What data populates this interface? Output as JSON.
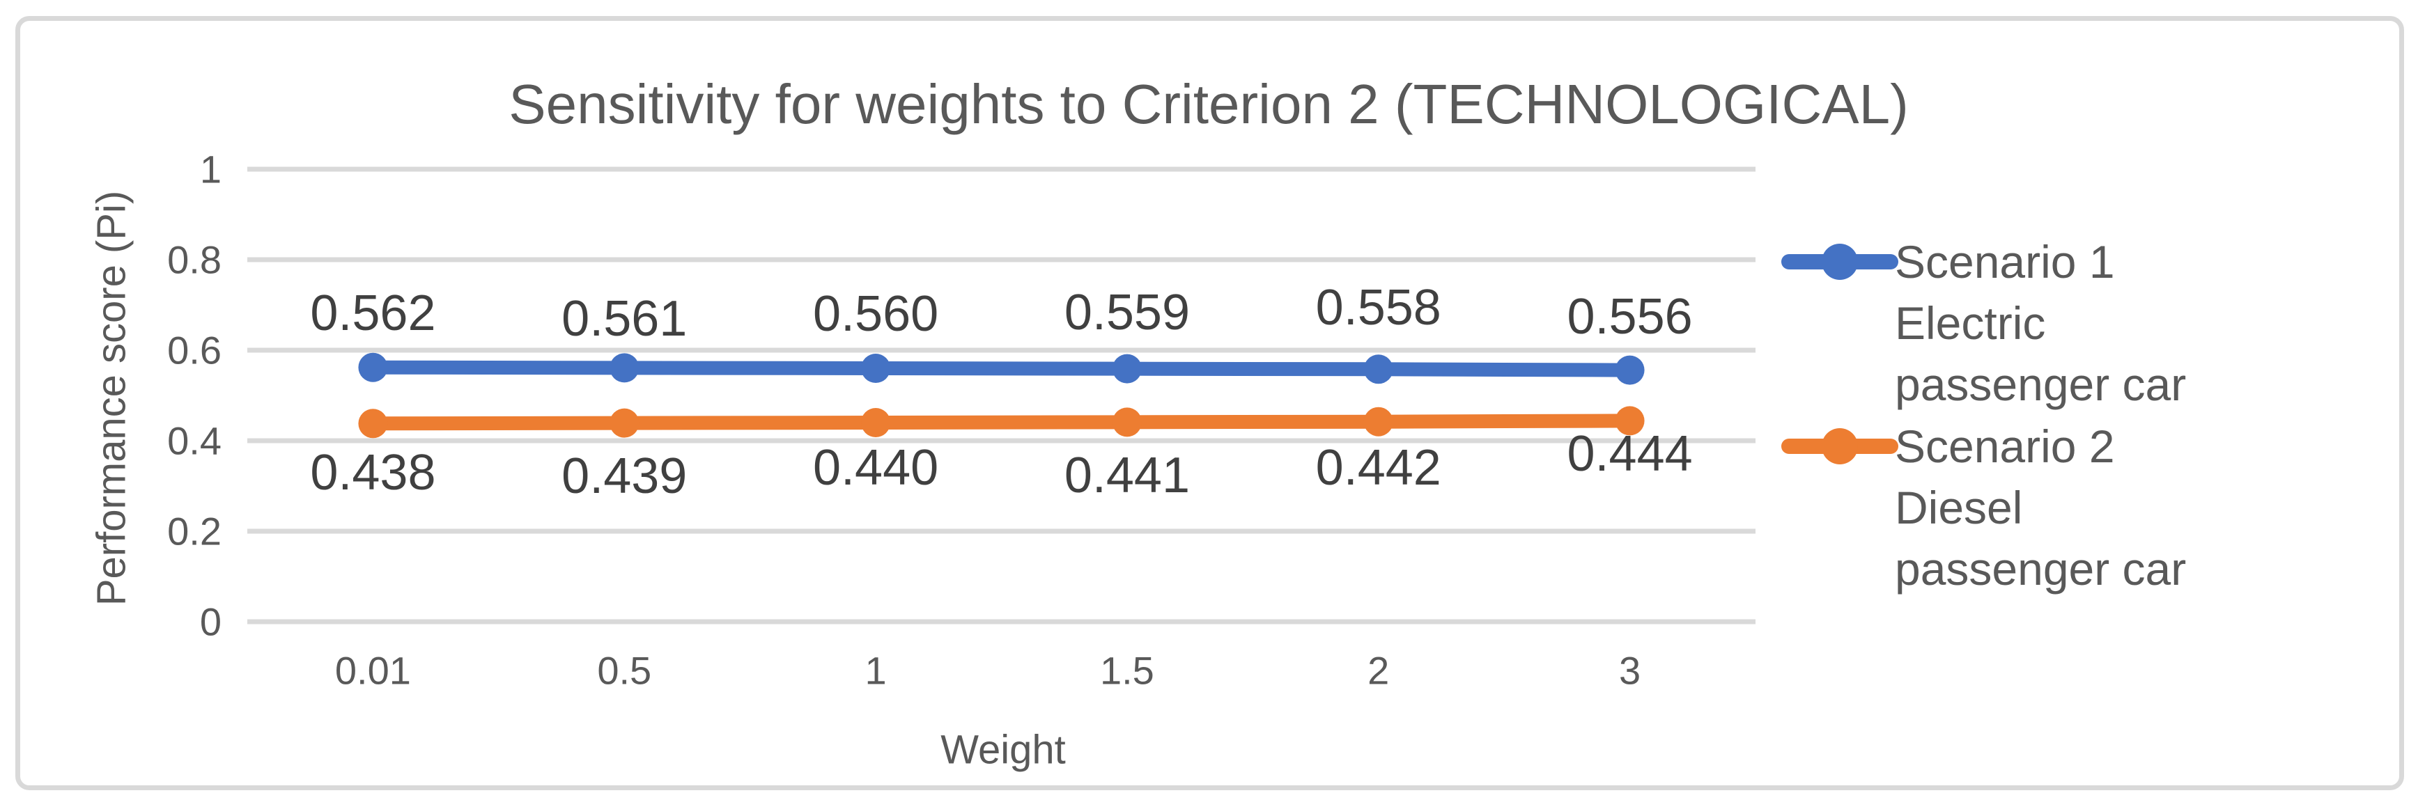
{
  "chart_data": {
    "type": "line",
    "title": "Sensitivity for weights to Criterion 2 (TECHNOLOGICAL)",
    "xlabel": "Weight",
    "ylabel": "Performance score (Pi)",
    "categories": [
      "0.01",
      "0.5",
      "1",
      "1.5",
      "2",
      "3"
    ],
    "y_ticks": [
      "1",
      "0.8",
      "0.6",
      "0.4",
      "0.2",
      "0"
    ],
    "ylim": [
      0,
      1
    ],
    "grid": "horizontal-only",
    "legend_position": "right",
    "series": [
      {
        "name": "Scenario 1 Electric passenger car",
        "legend_lines": [
          "Scenario 1",
          "Electric",
          "passenger car"
        ],
        "color": "#4472C4",
        "values": [
          0.562,
          0.561,
          0.56,
          0.559,
          0.558,
          0.556
        ],
        "labels": [
          "0.562",
          "0.561",
          "0.560",
          "0.559",
          "0.558",
          "0.556"
        ],
        "label_position": "above"
      },
      {
        "name": "Scenario 2 Diesel passenger car",
        "legend_lines": [
          "Scenario 2",
          "Diesel",
          "passenger car"
        ],
        "color": "#ED7D31",
        "values": [
          0.438,
          0.439,
          0.44,
          0.441,
          0.442,
          0.444
        ],
        "labels": [
          "0.438",
          "0.439",
          "0.440",
          "0.441",
          "0.442",
          "0.444"
        ],
        "label_position": "below"
      }
    ]
  },
  "colors": {
    "series1_blue": "#4472C4",
    "series2_orange": "#ED7D31",
    "gridline": "#D9D9D9",
    "frame_border": "#D9D9D9",
    "axis_text": "#595959",
    "data_label_text": "#404040"
  }
}
